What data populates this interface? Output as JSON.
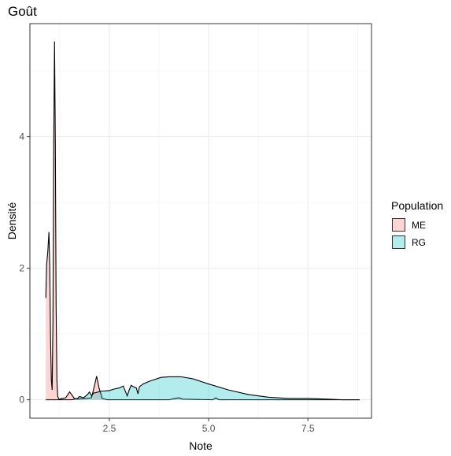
{
  "chart_data": {
    "type": "area",
    "title": "Goût",
    "xlabel": "Note",
    "ylabel": "Densité",
    "xlim": [
      0.5,
      9.1
    ],
    "ylim": [
      -0.28,
      5.72
    ],
    "xticks": [
      2.5,
      5.0,
      7.5
    ],
    "xtick_labels": [
      "2.5",
      "5.0",
      "7.5"
    ],
    "yticks": [
      0,
      2,
      4
    ],
    "ytick_labels": [
      "0",
      "2",
      "4"
    ],
    "grid": true,
    "legend": {
      "title": "Population",
      "position": "right"
    },
    "series": [
      {
        "name": "ME",
        "color": "#F8766D",
        "x": [
          0.9,
          0.92,
          0.95,
          0.98,
          1.0,
          1.02,
          1.04,
          1.06,
          1.08,
          1.1,
          1.12,
          1.14,
          1.16,
          1.18,
          1.2,
          1.23,
          1.26,
          1.3,
          1.4,
          1.5,
          1.55,
          1.62,
          1.7,
          2.05,
          2.12,
          2.18,
          2.24,
          2.32,
          2.45,
          3.0,
          4.0,
          4.15,
          4.25,
          4.35,
          5.1,
          5.18,
          5.26,
          6.0,
          7.0,
          8.0,
          8.8
        ],
        "y": [
          1.55,
          2.05,
          2.25,
          2.55,
          2.0,
          0.9,
          0.3,
          0.15,
          1.2,
          3.9,
          5.45,
          3.9,
          1.4,
          0.3,
          0.05,
          0.01,
          0.01,
          0.02,
          0.03,
          0.12,
          0.08,
          0.02,
          0.01,
          0.03,
          0.2,
          0.36,
          0.18,
          0.02,
          0.0,
          0.0,
          0.0,
          0.02,
          0.03,
          0.01,
          0.0,
          0.03,
          0.0,
          0.0,
          0.0,
          0.0,
          0.0
        ]
      },
      {
        "name": "RG",
        "color": "#00BFC4",
        "x": [
          0.9,
          1.4,
          1.55,
          1.7,
          1.75,
          1.85,
          1.95,
          2.0,
          2.05,
          2.1,
          2.3,
          2.5,
          2.6,
          2.75,
          2.85,
          2.95,
          3.0,
          3.05,
          3.1,
          3.18,
          3.22,
          3.26,
          3.35,
          3.5,
          3.8,
          4.0,
          4.3,
          4.6,
          5.0,
          5.5,
          6.0,
          6.5,
          7.0,
          7.5,
          8.0,
          8.4,
          8.8
        ],
        "y": [
          0.0,
          0.0,
          0.0,
          0.02,
          0.05,
          0.03,
          0.08,
          0.12,
          0.06,
          0.1,
          0.13,
          0.14,
          0.16,
          0.18,
          0.21,
          0.06,
          0.15,
          0.22,
          0.2,
          0.18,
          0.09,
          0.2,
          0.24,
          0.28,
          0.34,
          0.35,
          0.35,
          0.32,
          0.24,
          0.15,
          0.08,
          0.04,
          0.02,
          0.02,
          0.01,
          0.0,
          0.0
        ]
      }
    ]
  }
}
